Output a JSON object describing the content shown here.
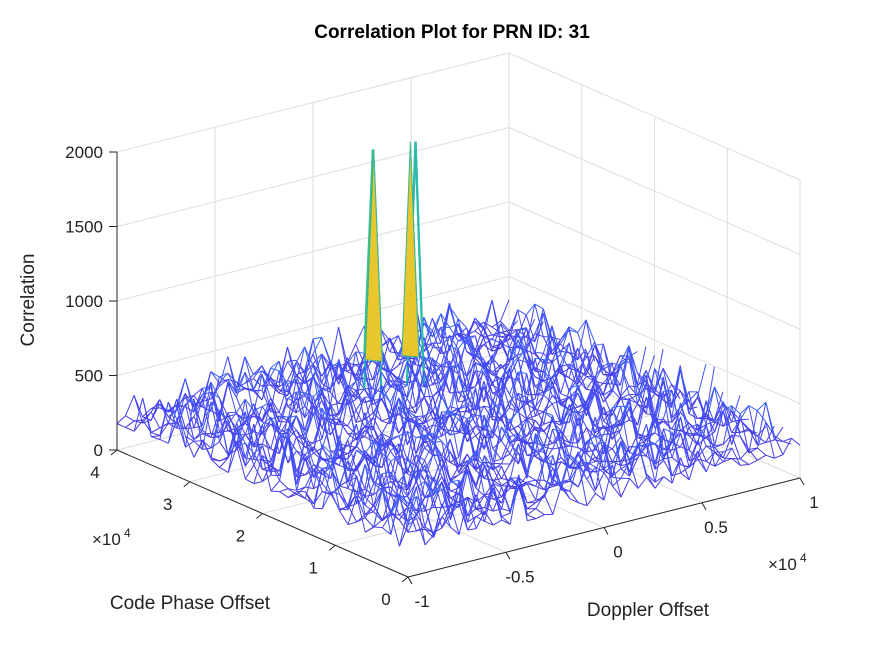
{
  "chart_data": {
    "type": "surface",
    "title": "Correlation Plot for PRN ID: 31",
    "xlabel": "Doppler Offset",
    "ylabel": "Code Phase Offset",
    "zlabel": "Correlation",
    "x_multiplier": "×10^4",
    "y_multiplier": "×10^4",
    "xlim": [
      -1,
      1
    ],
    "ylim": [
      0,
      4
    ],
    "zlim": [
      0,
      2000
    ],
    "x_ticks": [
      "-1",
      "-0.5",
      "0",
      "0.5",
      "1"
    ],
    "y_ticks": [
      "0",
      "1",
      "2",
      "3",
      "4"
    ],
    "z_ticks": [
      "0",
      "500",
      "1000",
      "1500",
      "2000"
    ],
    "noise_floor_range": [
      0,
      500
    ],
    "peaks": [
      {
        "doppler_offset": 0.05,
        "code_phase_offset": 3.3,
        "correlation": 1820
      },
      {
        "doppler_offset": 0.2,
        "code_phase_offset": 3.2,
        "correlation": 1840
      }
    ],
    "colormap": [
      "#3e26a8",
      "#4743f6",
      "#2f82f9",
      "#12b3d6",
      "#3cc08f",
      "#a2c03a",
      "#f2c230",
      "#f9fb14"
    ],
    "grid": true
  }
}
